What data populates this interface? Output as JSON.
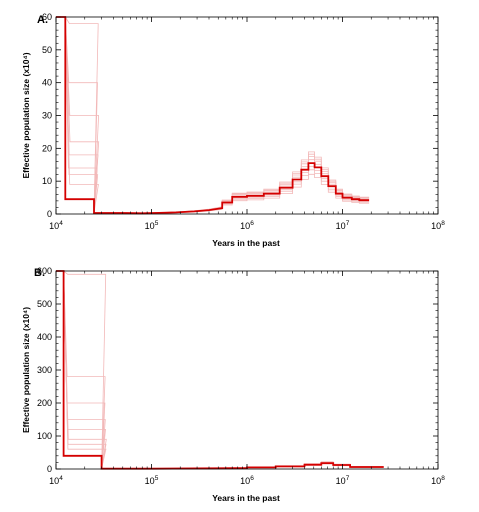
{
  "chart_data": [
    {
      "type": "line",
      "panel_label": "A.",
      "xlabel": "Years in the past",
      "ylabel": "Effective population size (x10⁴)",
      "x_scale": "log",
      "xlim": [
        10000,
        100000000
      ],
      "ylim": [
        0,
        60
      ],
      "x_ticks": [
        {
          "value": 10000,
          "base": "10",
          "exp": "4"
        },
        {
          "value": 100000,
          "base": "10",
          "exp": "5"
        },
        {
          "value": 1000000,
          "base": "10",
          "exp": "6"
        },
        {
          "value": 10000000,
          "base": "10",
          "exp": "7"
        },
        {
          "value": 100000000,
          "base": "10",
          "exp": "8"
        }
      ],
      "y_ticks": [
        "0",
        "10",
        "20",
        "30",
        "40",
        "50",
        "60"
      ],
      "grid": false,
      "main_color": "#d40000",
      "bootstrap_color": "#f2b8b8",
      "main": {
        "x": [
          10000,
          12500,
          12500,
          25000,
          25000,
          50000,
          80000,
          120000,
          180000,
          280000,
          400000,
          550000,
          550000,
          700000,
          700000,
          1000000,
          1000000,
          1500000,
          1500000,
          2200000,
          2200000,
          3000000,
          3000000,
          3700000,
          3700000,
          4400000,
          4400000,
          5100000,
          5100000,
          6000000,
          6000000,
          7100000,
          7100000,
          8500000,
          8500000,
          10000000,
          10000000,
          12500000,
          12500000,
          15000000,
          15000000,
          19000000
        ],
        "y": [
          60,
          60,
          4.5,
          4.5,
          0.3,
          0.3,
          0.2,
          0.35,
          0.5,
          0.8,
          1.2,
          1.8,
          3.5,
          3.5,
          5.2,
          5.2,
          5.5,
          5.5,
          6.2,
          6.2,
          8.0,
          8.0,
          10.5,
          10.5,
          13.5,
          13.5,
          15.5,
          15.5,
          14.2,
          14.2,
          11.5,
          11.5,
          8.5,
          8.5,
          6.2,
          6.2,
          5.0,
          5.0,
          4.5,
          4.5,
          4.2,
          4.2
        ]
      },
      "bootstraps": [
        {
          "s": 1.0,
          "a": 18,
          "b": 0.3
        },
        {
          "s": 1.06,
          "a": 9,
          "b": 0.45
        },
        {
          "s": 0.94,
          "a": 40,
          "b": 0.25
        },
        {
          "s": 1.1,
          "a": 22,
          "b": 0.4
        },
        {
          "s": 0.9,
          "a": 14,
          "b": 0.35
        },
        {
          "s": 1.03,
          "a": 58,
          "b": 0.2
        },
        {
          "s": 0.97,
          "a": 12,
          "b": 0.5
        },
        {
          "s": 1.08,
          "a": 30,
          "b": 0.3
        }
      ]
    },
    {
      "type": "line",
      "panel_label": "B.",
      "xlabel": "Years in the past",
      "ylabel": "Effective population size (x10⁴)",
      "x_scale": "log",
      "xlim": [
        10000,
        100000000
      ],
      "ylim": [
        0,
        600
      ],
      "x_ticks": [
        {
          "value": 10000,
          "base": "10",
          "exp": "4"
        },
        {
          "value": 100000,
          "base": "10",
          "exp": "5"
        },
        {
          "value": 1000000,
          "base": "10",
          "exp": "6"
        },
        {
          "value": 10000000,
          "base": "10",
          "exp": "7"
        },
        {
          "value": 100000000,
          "base": "10",
          "exp": "8"
        }
      ],
      "y_ticks": [
        "0",
        "100",
        "200",
        "300",
        "400",
        "500",
        "600"
      ],
      "grid": false,
      "main_color": "#d40000",
      "bootstrap_color": "#f2b8b8",
      "main": {
        "x": [
          10000,
          12000,
          12000,
          30000,
          30000,
          100000,
          500000,
          1000000,
          1000000,
          2000000,
          2000000,
          4000000,
          4000000,
          6000000,
          6000000,
          8000000,
          8000000,
          12000000,
          12000000,
          27000000
        ],
        "y": [
          600,
          600,
          40,
          40,
          1,
          1,
          2,
          3,
          5,
          5,
          8,
          8,
          13,
          13,
          18,
          18,
          12,
          12,
          6,
          6
        ]
      },
      "bootstraps": [
        {
          "s": 1.0,
          "a": 120,
          "b": 1.0
        },
        {
          "s": 1.05,
          "a": 60,
          "b": 1.0
        },
        {
          "s": 0.95,
          "a": 280,
          "b": 1.0
        },
        {
          "s": 1.1,
          "a": 90,
          "b": 1.0
        },
        {
          "s": 0.92,
          "a": 200,
          "b": 1.0
        },
        {
          "s": 1.03,
          "a": 590,
          "b": 1.0
        },
        {
          "s": 0.97,
          "a": 150,
          "b": 1.0
        },
        {
          "s": 1.07,
          "a": 75,
          "b": 1.0
        }
      ]
    }
  ]
}
